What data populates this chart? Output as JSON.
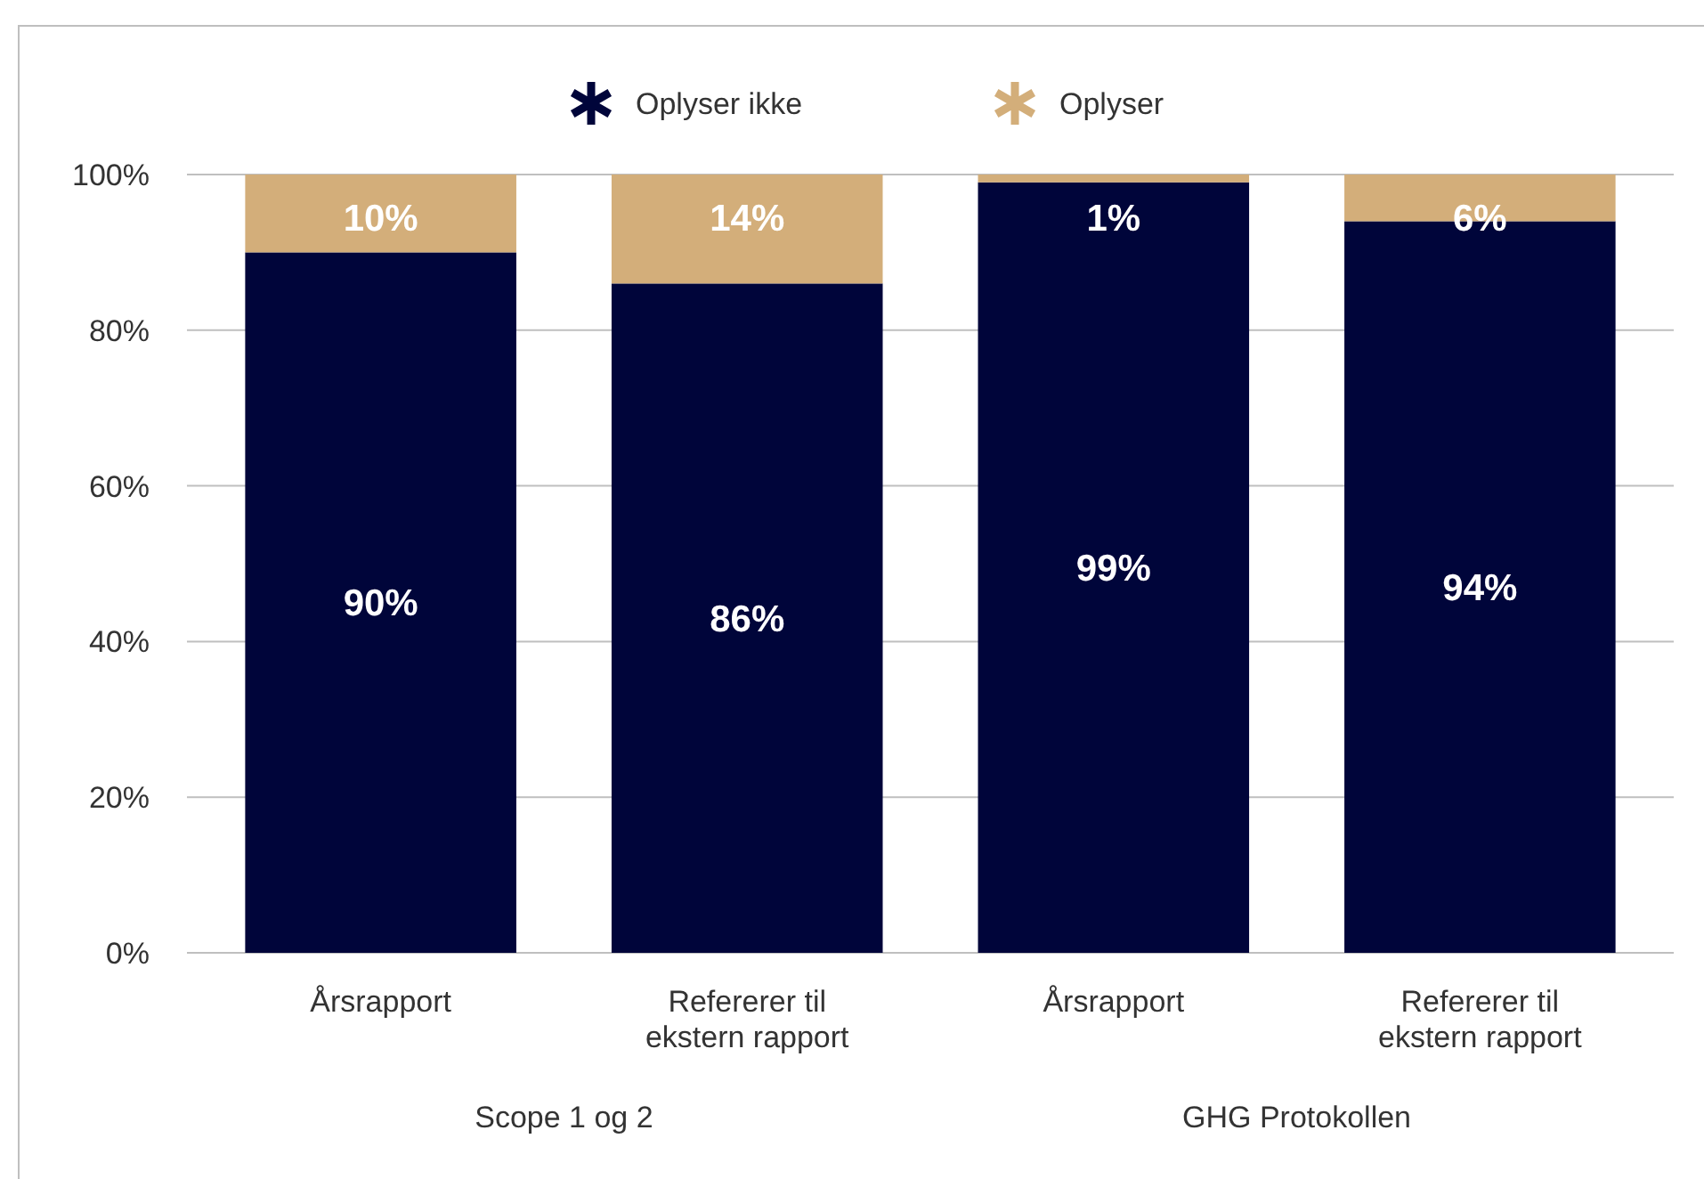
{
  "chart_data": {
    "type": "bar",
    "stacked": true,
    "categories": [
      "Årsrapport",
      "Refererer til ekstern rapport",
      "Årsrapport",
      "Refererer til ekstern rapport"
    ],
    "series": [
      {
        "name": "Oplyser ikke",
        "color": "#00053a",
        "values": [
          90,
          86,
          99,
          94
        ],
        "value_labels": [
          "90%",
          "86%",
          "99%",
          "94%"
        ]
      },
      {
        "name": "Oplyser",
        "color": "#d3ae7a",
        "values": [
          10,
          14,
          1,
          6
        ],
        "value_labels": [
          "10%",
          "14%",
          "1%",
          "6%"
        ]
      }
    ],
    "ylim": [
      0,
      100
    ],
    "yticks": [
      {
        "value": 0,
        "label": "0%"
      },
      {
        "value": 20,
        "label": "20%"
      },
      {
        "value": 40,
        "label": "40%"
      },
      {
        "value": 60,
        "label": "60%"
      },
      {
        "value": 80,
        "label": "80%"
      },
      {
        "value": 100,
        "label": "100%"
      }
    ],
    "grid": "y",
    "legend": "top",
    "annotations": [
      "Scope 1 og 2",
      "GHG Protokollen"
    ]
  }
}
